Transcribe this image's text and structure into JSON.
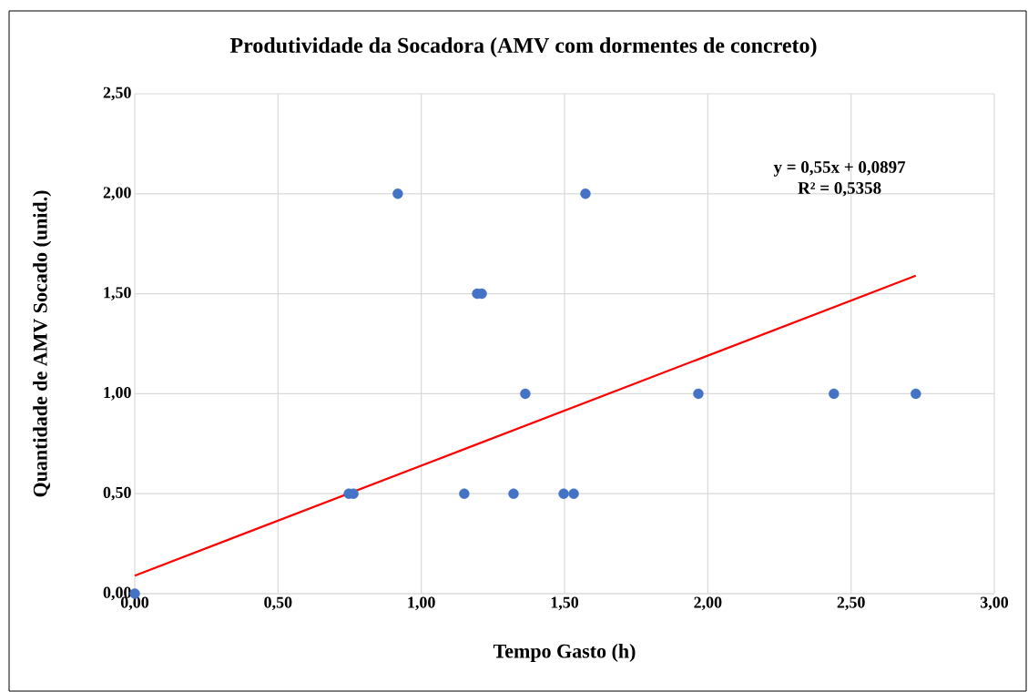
{
  "chart_data": {
    "type": "scatter",
    "title": "Produtividade da Socadora (AMV com dormentes de concreto)",
    "xlabel": "Tempo Gasto (h)",
    "ylabel": "Quantidade de AMV Socado (unid.)",
    "series": [
      {
        "type": "scatter",
        "marker": "circle",
        "color": "#4472c4",
        "x": [
          0,
          0.747,
          0.763,
          0.918,
          1.15,
          1.195,
          1.211,
          1.322,
          1.363,
          1.497,
          1.532,
          1.573,
          1.967,
          2.44,
          2.726
        ],
        "values": [
          0,
          0.5,
          0.5,
          2.0,
          0.5,
          1.5,
          1.5,
          0.5,
          1.0,
          0.5,
          0.5,
          2.0,
          1.0,
          1.0,
          1.0
        ]
      },
      {
        "type": "line",
        "marker": "none",
        "color": "#ff0000",
        "x": [
          0,
          2.726
        ],
        "values": [
          0.09,
          1.59
        ]
      }
    ],
    "annotations": [
      "y = 0,55x + 0,0897",
      "R² = 0,5358"
    ],
    "xlim": [
      0,
      3
    ],
    "ylim": [
      0,
      2.5
    ],
    "xticks": [
      {
        "value": 0,
        "label": "0,00"
      },
      {
        "value": 0.5,
        "label": "0,50"
      },
      {
        "value": 1,
        "label": "1,00"
      },
      {
        "value": 1.5,
        "label": "1,50"
      },
      {
        "value": 2,
        "label": "2,00"
      },
      {
        "value": 2.5,
        "label": "2,50"
      },
      {
        "value": 3,
        "label": "3,00"
      }
    ],
    "yticks": [
      {
        "value": 0,
        "label": "0,00"
      },
      {
        "value": 0.5,
        "label": "0,50"
      },
      {
        "value": 1,
        "label": "1,00"
      },
      {
        "value": 1.5,
        "label": "1,50"
      },
      {
        "value": 2,
        "label": "2,00"
      },
      {
        "value": 2.5,
        "label": "2,50"
      }
    ],
    "grid": true
  }
}
